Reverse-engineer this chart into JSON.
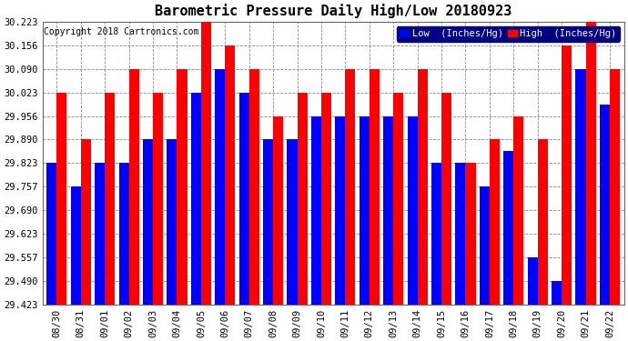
{
  "title": "Barometric Pressure Daily High/Low 20180923",
  "copyright": "Copyright 2018 Cartronics.com",
  "legend_low": "Low  (Inches/Hg)",
  "legend_high": "High  (Inches/Hg)",
  "dates": [
    "08/30",
    "08/31",
    "09/01",
    "09/02",
    "09/03",
    "09/04",
    "09/05",
    "09/06",
    "09/07",
    "09/08",
    "09/09",
    "09/10",
    "09/11",
    "09/12",
    "09/13",
    "09/14",
    "09/15",
    "09/16",
    "09/17",
    "09/18",
    "09/19",
    "09/20",
    "09/21",
    "09/22"
  ],
  "high_values": [
    30.023,
    29.89,
    30.023,
    30.09,
    30.023,
    30.09,
    30.223,
    30.156,
    30.09,
    29.956,
    30.023,
    30.023,
    30.09,
    30.09,
    30.023,
    30.09,
    30.023,
    29.823,
    29.89,
    29.956,
    29.89,
    30.156,
    30.223,
    30.09
  ],
  "low_values": [
    29.823,
    29.757,
    29.823,
    29.823,
    29.89,
    29.89,
    30.023,
    30.09,
    30.023,
    29.89,
    29.89,
    29.956,
    29.956,
    29.956,
    29.956,
    29.956,
    29.823,
    29.823,
    29.757,
    29.857,
    29.557,
    29.49,
    30.09,
    29.99
  ],
  "ylim_min": 29.423,
  "ylim_max": 30.223,
  "yticks": [
    29.423,
    29.49,
    29.557,
    29.623,
    29.69,
    29.757,
    29.823,
    29.89,
    29.956,
    30.023,
    30.09,
    30.156,
    30.223
  ],
  "bar_color_low": "#0000ff",
  "bar_color_high": "#ff0000",
  "background_color": "#ffffff",
  "grid_color": "#888888",
  "title_fontsize": 11,
  "tick_fontsize": 7.5,
  "legend_fontsize": 7.5,
  "copyright_fontsize": 7
}
